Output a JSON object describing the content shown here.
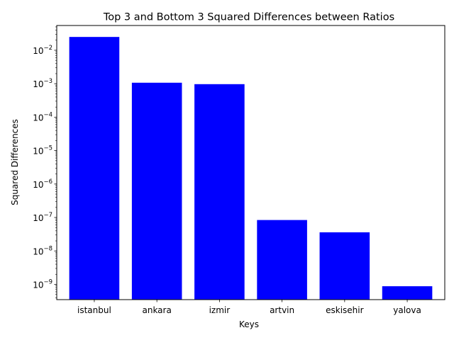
{
  "chart_data": {
    "type": "bar",
    "title": "Top 3 and Bottom 3 Squared Differences between Ratios",
    "xlabel": "Keys",
    "ylabel": "Squared Differences",
    "yscale": "log",
    "ylim": [
      3.5e-10,
      0.055
    ],
    "categories": [
      "istanbul",
      "ankara",
      "izmir",
      "artvin",
      "eskisehir",
      "yalova"
    ],
    "values": [
      0.025,
      0.00107,
      0.00097,
      8.4e-08,
      3.6e-08,
      8.8e-10
    ],
    "bar_color": "#0000ff",
    "grid": false,
    "legend": "none",
    "yticks": [
      {
        "value": 1e-09,
        "base": "10",
        "exp": "−9"
      },
      {
        "value": 1e-08,
        "base": "10",
        "exp": "−8"
      },
      {
        "value": 1e-07,
        "base": "10",
        "exp": "−7"
      },
      {
        "value": 1e-06,
        "base": "10",
        "exp": "−6"
      },
      {
        "value": 1e-05,
        "base": "10",
        "exp": "−5"
      },
      {
        "value": 0.0001,
        "base": "10",
        "exp": "−4"
      },
      {
        "value": 0.001,
        "base": "10",
        "exp": "−3"
      },
      {
        "value": 0.01,
        "base": "10",
        "exp": "−2"
      }
    ]
  }
}
